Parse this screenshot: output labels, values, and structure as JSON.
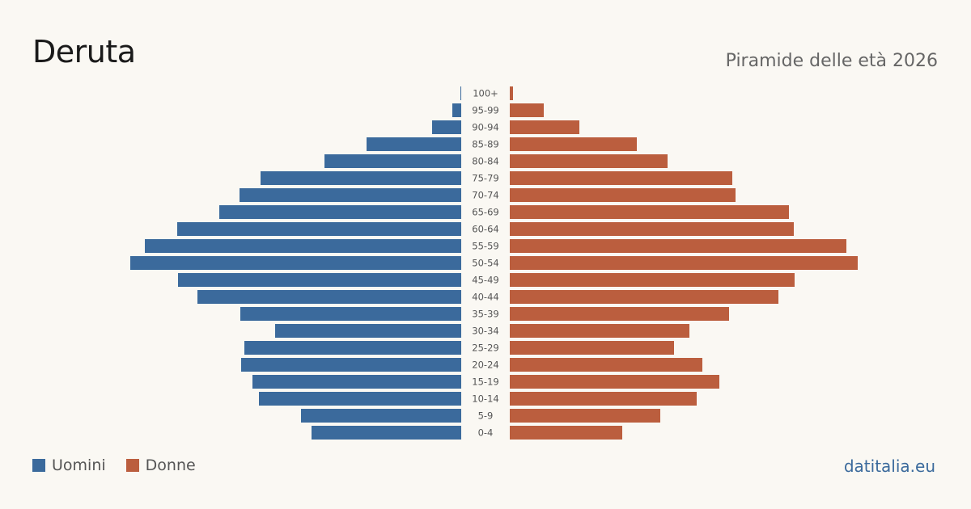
{
  "header": {
    "title": "Deruta",
    "subtitle": "Piramide delle età 2026"
  },
  "legend": {
    "men_label": "Uomini",
    "women_label": "Donne"
  },
  "source": "datitalia.eu",
  "colors": {
    "men": "#3b6a9c",
    "women": "#bb5e3e"
  },
  "chart_data": {
    "type": "bar",
    "orientation": "horizontal-pyramid",
    "categories": [
      "100+",
      "95-99",
      "90-94",
      "85-89",
      "80-84",
      "75-79",
      "70-74",
      "65-69",
      "60-64",
      "55-59",
      "50-54",
      "45-49",
      "40-44",
      "35-39",
      "30-34",
      "25-29",
      "20-24",
      "15-19",
      "10-14",
      "5-9",
      "0-4"
    ],
    "series": [
      {
        "name": "Uomini",
        "values": [
          1,
          11,
          36,
          117,
          169,
          248,
          274,
          299,
          351,
          391,
          409,
          350,
          326,
          273,
          230,
          268,
          272,
          258,
          250,
          198,
          185
        ]
      },
      {
        "name": "Donne",
        "values": [
          4,
          42,
          86,
          157,
          195,
          275,
          279,
          345,
          351,
          416,
          430,
          352,
          332,
          271,
          222,
          203,
          238,
          259,
          231,
          186,
          139
        ]
      }
    ],
    "xlim": [
      0,
      430
    ],
    "grid": false,
    "legend_position": "bottom-left"
  }
}
